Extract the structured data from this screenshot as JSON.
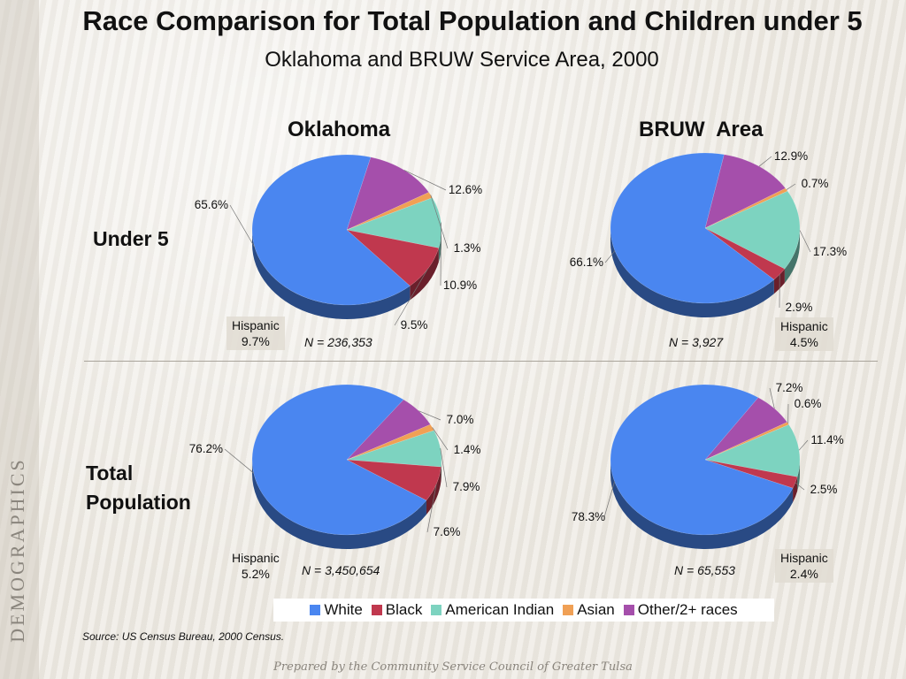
{
  "title": "Race Comparison for Total Population and Children under 5",
  "subtitle": "Oklahoma and BRUW Service Area, 2000",
  "side_label": "DEMOGRAPHICS",
  "column_headers": [
    "Oklahoma",
    "BRUW  Area"
  ],
  "row_headers": [
    "Under 5",
    "Total Population"
  ],
  "hispanic_label": "Hispanic",
  "source": "Source:  US Census Bureau, 2000 Census.",
  "footer": "Prepared by the Community Service Council of Greater Tulsa",
  "legend": [
    "White",
    "Black",
    "American Indian",
    "Asian",
    "Other/2+ races"
  ],
  "colors": {
    "White": "#4a86f0",
    "Black": "#c0384e",
    "American Indian": "#7dd3c0",
    "Asian": "#f0a055",
    "Other/2+ races": "#a54fab"
  },
  "chart_data": [
    {
      "type": "pie",
      "title": "Oklahoma",
      "row": "Under 5",
      "categories": [
        "White",
        "Black",
        "American Indian",
        "Asian",
        "Other/2+ races"
      ],
      "values": [
        65.6,
        9.5,
        10.9,
        1.3,
        12.6
      ],
      "labels": [
        "65.6%",
        "9.5%",
        "10.9%",
        "1.3%",
        "12.6%"
      ],
      "hispanic": "9.7%",
      "n": "N = 236,353"
    },
    {
      "type": "pie",
      "title": "BRUW  Area",
      "row": "Under 5",
      "categories": [
        "White",
        "Black",
        "American Indian",
        "Asian",
        "Other/2+ races"
      ],
      "values": [
        66.1,
        2.9,
        17.3,
        0.7,
        12.9
      ],
      "labels": [
        "66.1%",
        "2.9%",
        "17.3%",
        "0.7%",
        "12.9%"
      ],
      "hispanic": "4.5%",
      "n": "N = 3,927"
    },
    {
      "type": "pie",
      "title": "Oklahoma",
      "row": "Total Population",
      "categories": [
        "White",
        "Black",
        "American Indian",
        "Asian",
        "Other/2+ races"
      ],
      "values": [
        76.2,
        7.6,
        7.9,
        1.4,
        7.0
      ],
      "labels": [
        "76.2%",
        "7.6%",
        "7.9%",
        "1.4%",
        "7.0%"
      ],
      "hispanic": "5.2%",
      "n": "N = 3,450,654"
    },
    {
      "type": "pie",
      "title": "BRUW  Area",
      "row": "Total Population",
      "categories": [
        "White",
        "Black",
        "American Indian",
        "Asian",
        "Other/2+ races"
      ],
      "values": [
        78.3,
        2.5,
        11.4,
        0.6,
        7.2
      ],
      "labels": [
        "78.3%",
        "2.5%",
        "11.4%",
        "0.6%",
        "7.2%"
      ],
      "hispanic": "2.4%",
      "n": "N = 65,553"
    }
  ]
}
